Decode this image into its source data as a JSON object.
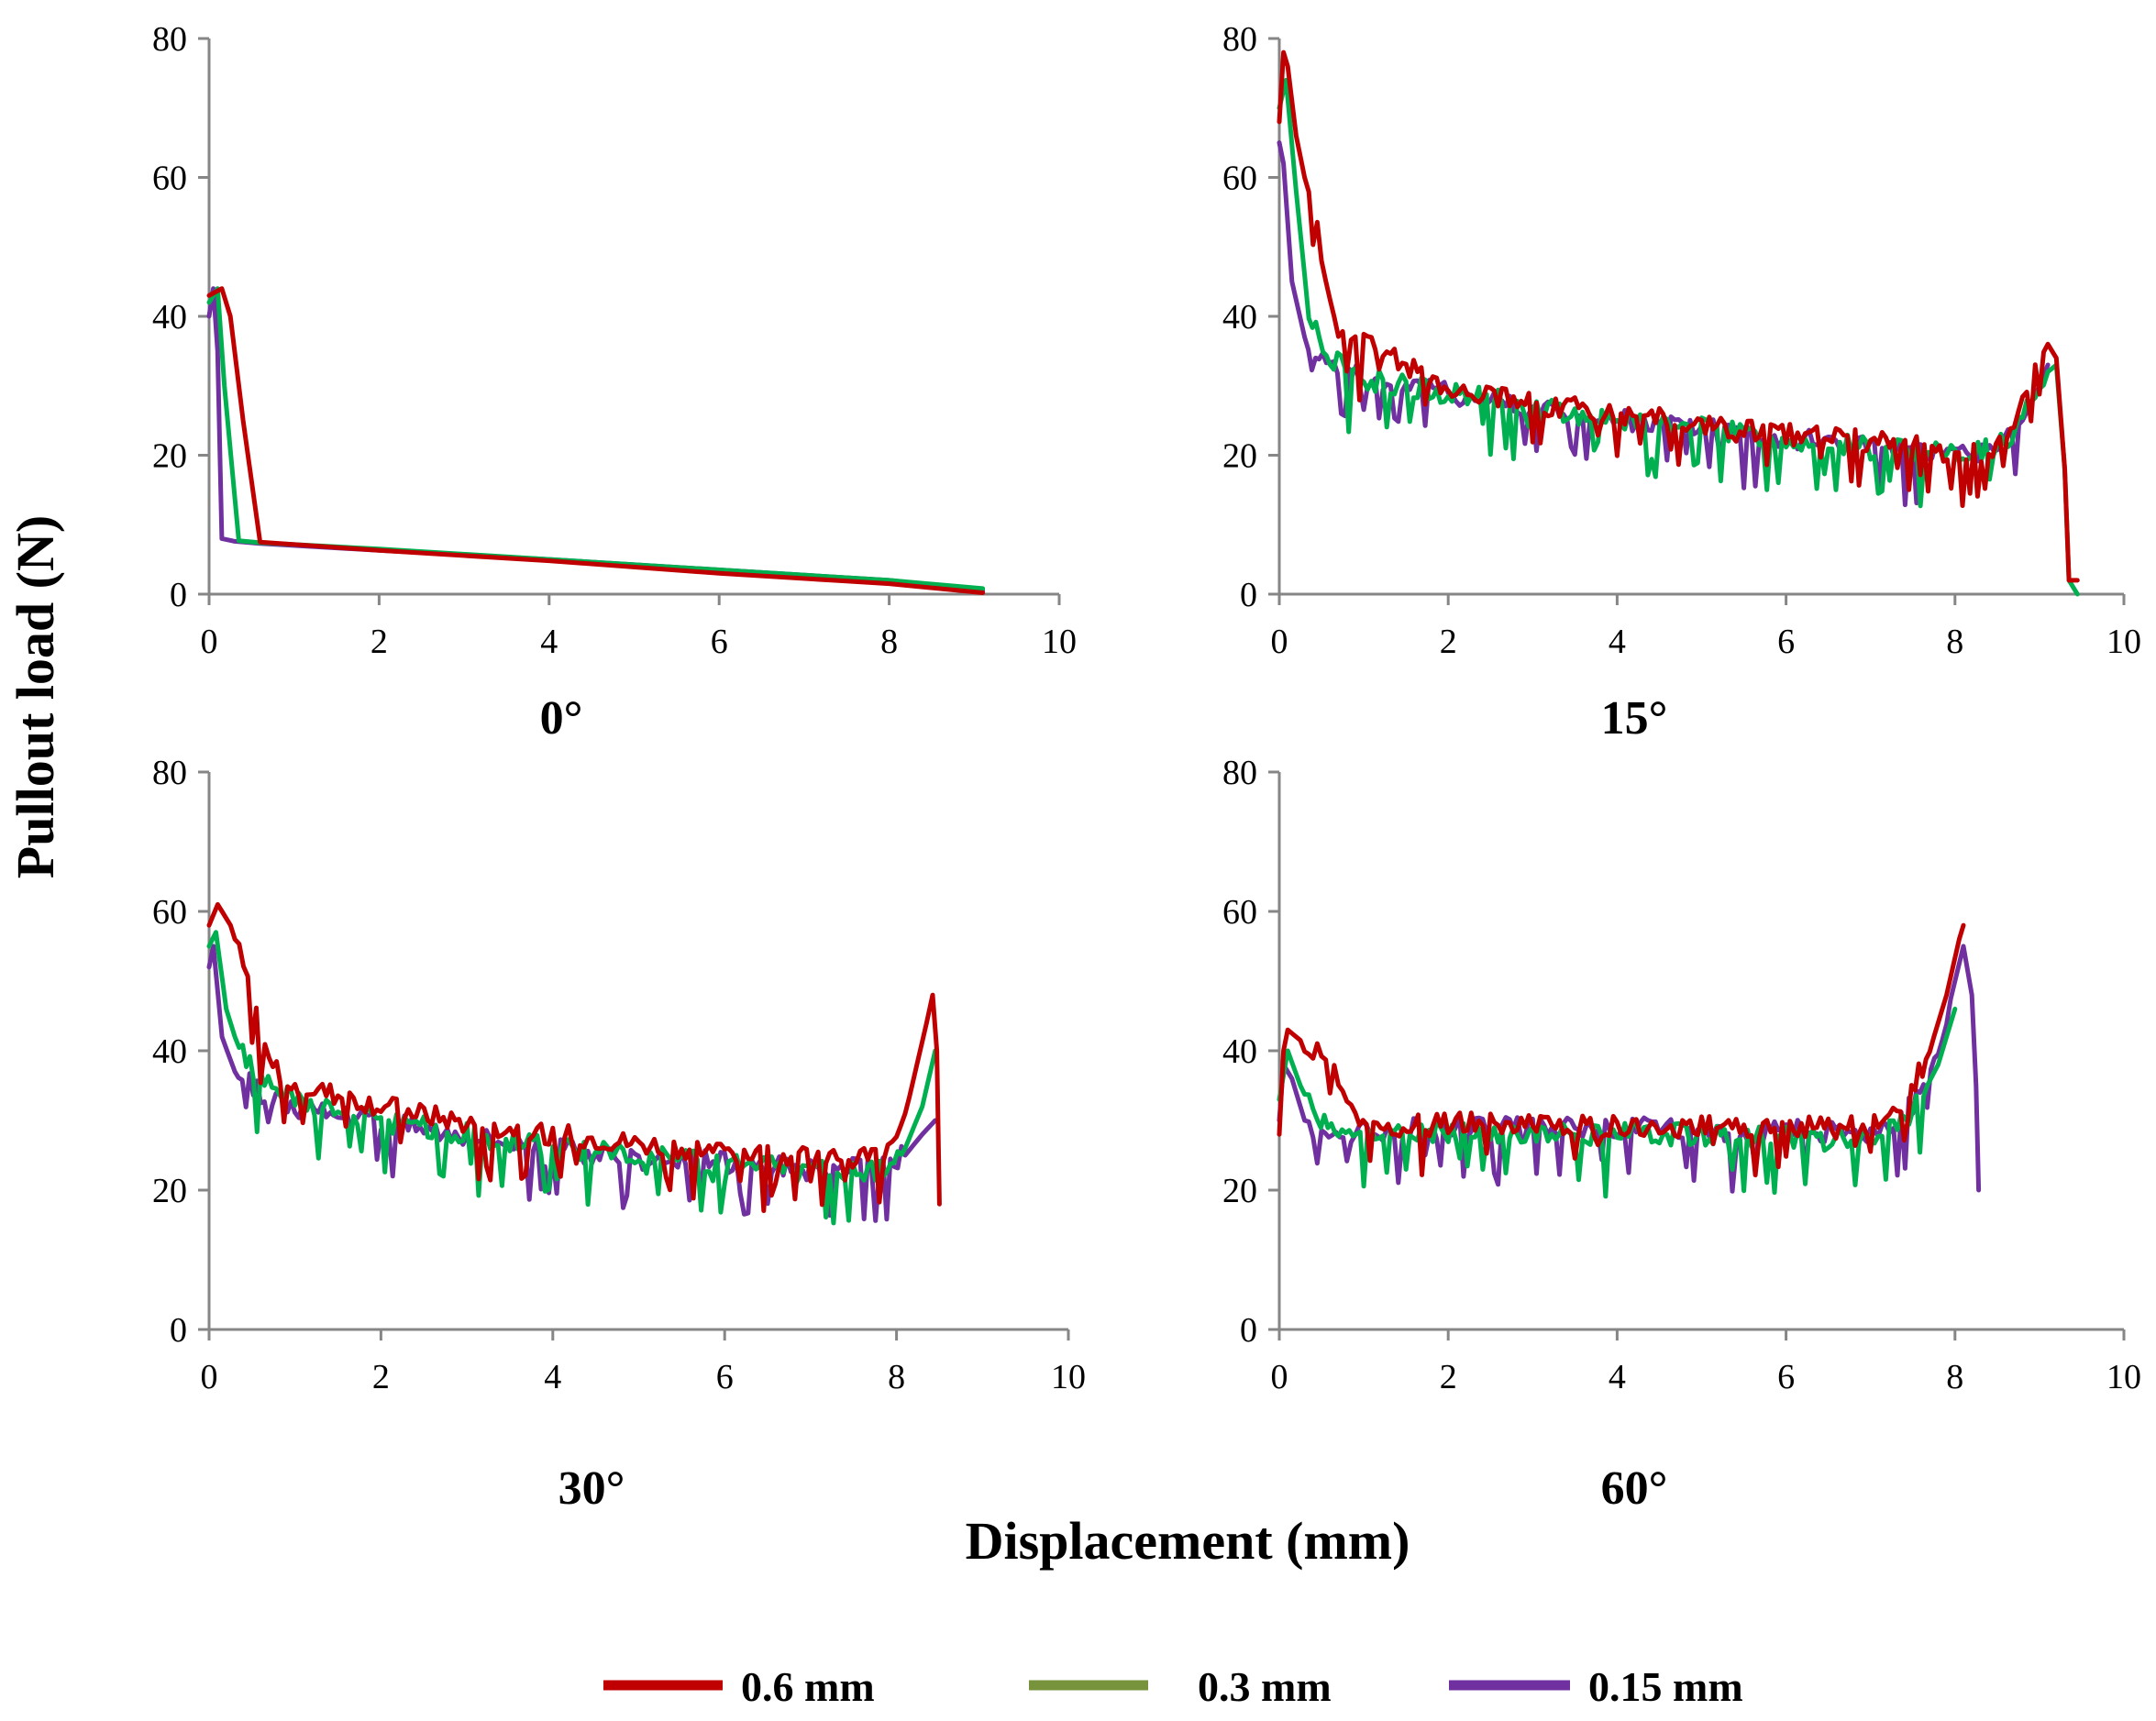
{
  "figure": {
    "ylabel": "Pullout load (N)",
    "xlabel": "Displacement (mm)"
  },
  "legend": [
    {
      "label": "0.6 mm",
      "color": "#C00000"
    },
    {
      "label": "0.3 mm",
      "color": "#77933C"
    },
    {
      "label": "0.15 mm",
      "color": "#7030A0"
    }
  ],
  "colors": {
    "s06": "#C00000",
    "s03": "#00B050",
    "s015": "#7030A0",
    "axis": "#868686"
  },
  "chart_data": [
    {
      "type": "line",
      "title": "0°",
      "xlabel": "Displacement (mm)",
      "ylabel": "Pullout load (N)",
      "xlim": [
        0,
        10
      ],
      "ylim": [
        0,
        80
      ],
      "xticks": [
        "0",
        "2",
        "4",
        "6",
        "8",
        "10"
      ],
      "yticks": [
        "0",
        "20",
        "40",
        "60",
        "80"
      ],
      "series": [
        {
          "name": "0.15 mm",
          "color": "#7030A0",
          "x": [
            0,
            0.05,
            0.1,
            0.15,
            0.3,
            0.6,
            2,
            4,
            6,
            8,
            9.1
          ],
          "y": [
            40,
            44,
            35,
            8,
            7.6,
            7.3,
            6.3,
            5,
            3.5,
            2,
            0.5
          ]
        },
        {
          "name": "0.3 mm",
          "color": "#00B050",
          "x": [
            0,
            0.1,
            0.18,
            0.35,
            0.6,
            2,
            4,
            6,
            8,
            9.1
          ],
          "y": [
            42,
            44,
            30,
            7.7,
            7.4,
            6.5,
            5,
            3.5,
            2,
            0.8
          ]
        },
        {
          "name": "0.6 mm",
          "color": "#C00000",
          "x": [
            0,
            0.15,
            0.25,
            0.4,
            0.6,
            2,
            4,
            6,
            8,
            9.1
          ],
          "y": [
            43,
            44,
            40,
            25,
            7.5,
            6.3,
            4.8,
            3,
            1.5,
            0.2
          ]
        }
      ]
    },
    {
      "type": "line",
      "title": "15°",
      "xlim": [
        0,
        10
      ],
      "ylim": [
        0,
        80
      ],
      "xticks": [
        "0",
        "2",
        "4",
        "6",
        "8",
        "10"
      ],
      "yticks": [
        "0",
        "20",
        "40",
        "60",
        "80"
      ],
      "series": [
        {
          "name": "0.15 mm",
          "color": "#7030A0",
          "x": [
            0,
            0.05,
            0.15,
            0.3,
            0.6,
            1,
            2,
            3,
            4,
            5,
            6,
            7,
            8,
            8.5,
            8.8,
            9.0,
            9.1
          ],
          "y": [
            65,
            62,
            45,
            37,
            33,
            31,
            29,
            27,
            25,
            24,
            22.5,
            21.5,
            20,
            21,
            25,
            30,
            33
          ]
        },
        {
          "name": "0.3 mm",
          "color": "#00B050",
          "x": [
            0,
            0.08,
            0.2,
            0.35,
            0.6,
            1,
            2,
            3,
            4,
            5,
            6,
            7,
            8,
            8.5,
            8.8,
            9.0,
            9.2,
            9.3,
            9.35,
            9.45
          ],
          "y": [
            70,
            74,
            58,
            40,
            34,
            31,
            29,
            27,
            25,
            24,
            22.5,
            21,
            20,
            21,
            25,
            31,
            33,
            18,
            2,
            0
          ]
        },
        {
          "name": "0.6 mm",
          "color": "#C00000",
          "x": [
            0,
            0.05,
            0.1,
            0.2,
            0.3,
            0.45,
            0.6,
            0.8,
            1,
            1.5,
            2,
            3,
            4,
            5,
            6,
            7,
            8,
            8.4,
            8.7,
            8.9,
            9.1,
            9.2,
            9.3,
            9.35,
            9.4,
            9.45
          ],
          "y": [
            68,
            78,
            76,
            66,
            60,
            52,
            42,
            38,
            36,
            33,
            30,
            27.5,
            26,
            24.5,
            23,
            22,
            20.5,
            20.5,
            25,
            31,
            36,
            34,
            18,
            2,
            2,
            2
          ]
        }
      ]
    },
    {
      "type": "line",
      "title": "30°",
      "xlim": [
        0,
        10
      ],
      "ylim": [
        0,
        80
      ],
      "xticks": [
        "0",
        "2",
        "4",
        "6",
        "8",
        "10"
      ],
      "yticks": [
        "0",
        "20",
        "40",
        "60",
        "80"
      ],
      "series": [
        {
          "name": "0.15 mm",
          "color": "#7030A0",
          "x": [
            0,
            0.05,
            0.15,
            0.3,
            0.6,
            1,
            2,
            3,
            4,
            5,
            6,
            7,
            7.8,
            8.1,
            8.3,
            8.45
          ],
          "y": [
            52,
            55,
            42,
            37,
            34,
            32,
            30,
            28,
            26,
            24.5,
            24,
            23,
            23,
            25,
            28,
            30
          ]
        },
        {
          "name": "0.3 mm",
          "color": "#00B050",
          "x": [
            0,
            0.08,
            0.2,
            0.35,
            0.6,
            1,
            2,
            3,
            4,
            5,
            6,
            7,
            7.8,
            8.1,
            8.3,
            8.45
          ],
          "y": [
            55,
            57,
            46,
            40,
            36,
            33,
            30,
            28,
            26,
            25,
            24,
            23,
            23,
            26,
            32,
            40
          ]
        },
        {
          "name": "0.6 mm",
          "color": "#C00000",
          "x": [
            0,
            0.1,
            0.25,
            0.4,
            0.55,
            0.7,
            1,
            2,
            3,
            4,
            5,
            6,
            7,
            7.8,
            8.0,
            8.2,
            8.35,
            8.42,
            8.47,
            8.5
          ],
          "y": [
            58,
            61,
            58,
            52,
            45,
            38,
            35,
            32,
            29.5,
            28,
            26.5,
            25.5,
            24.5,
            25,
            28,
            36,
            44,
            48,
            40,
            18
          ]
        }
      ]
    },
    {
      "type": "line",
      "title": "60°",
      "xlim": [
        0,
        10
      ],
      "ylim": [
        0,
        80
      ],
      "xticks": [
        "0",
        "2",
        "4",
        "6",
        "8",
        "10"
      ],
      "yticks": [
        "0",
        "20",
        "40",
        "60",
        "80"
      ],
      "series": [
        {
          "name": "0.15 mm",
          "color": "#7030A0",
          "x": [
            0,
            0.05,
            0.15,
            0.3,
            0.5,
            0.8,
            1,
            2,
            3,
            4,
            5,
            6,
            7,
            7.5,
            7.8,
            8.0,
            8.1,
            8.2,
            8.25,
            8.28
          ],
          "y": [
            30,
            38,
            36,
            30,
            28,
            28,
            28.5,
            29,
            29,
            29,
            28.5,
            28.5,
            28.5,
            32,
            40,
            50,
            55,
            48,
            35,
            20
          ]
        },
        {
          "name": "0.3 mm",
          "color": "#00B050",
          "x": [
            0,
            0.1,
            0.25,
            0.45,
            0.7,
            1,
            2,
            3,
            4,
            5,
            6,
            7,
            7.5,
            7.8,
            8.0
          ],
          "y": [
            33,
            40,
            35,
            30,
            28,
            28,
            28.5,
            28,
            28,
            28,
            27.5,
            27,
            31,
            38,
            46
          ]
        },
        {
          "name": "0.6 mm",
          "color": "#C00000",
          "x": [
            0,
            0.05,
            0.1,
            0.2,
            0.4,
            0.6,
            0.8,
            0.95,
            1.2,
            2,
            3,
            4,
            5,
            6,
            7,
            7.4,
            7.7,
            7.9,
            8.05,
            8.1
          ],
          "y": [
            28,
            40,
            43,
            42,
            40,
            38,
            33,
            30,
            29,
            29.5,
            29.5,
            29,
            29,
            29,
            29,
            32,
            40,
            48,
            56,
            58
          ]
        }
      ]
    }
  ]
}
